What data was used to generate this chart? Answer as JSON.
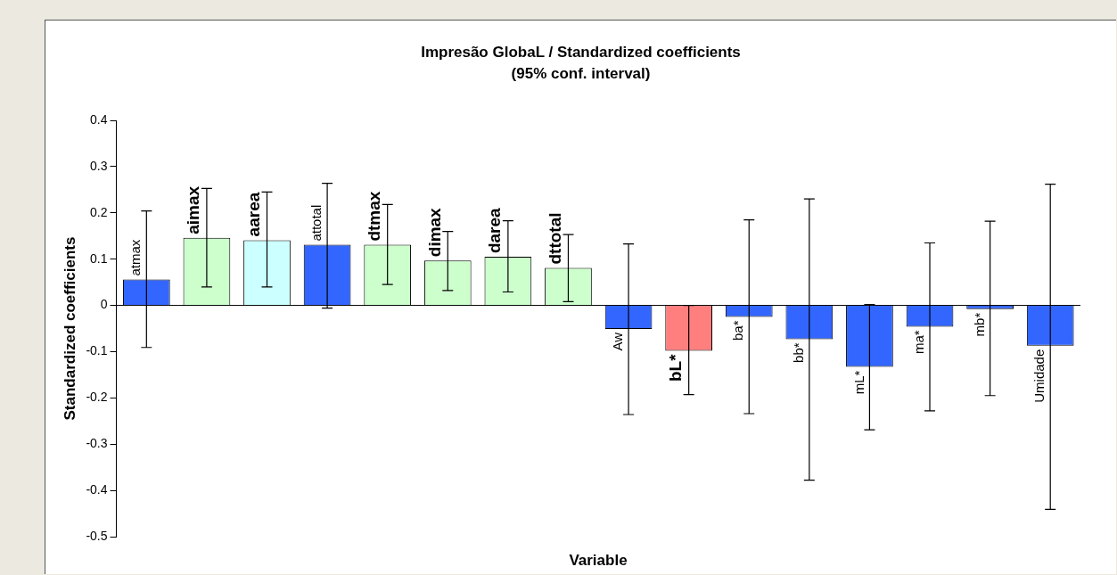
{
  "chart_data": {
    "type": "bar",
    "title": "Impresão GlobaL / Standardized coefficients",
    "subtitle": "(95% conf. interval)",
    "xlabel": "Variable",
    "ylabel": "Standardized coefficients",
    "categories": [
      "atmax",
      "aimax",
      "aarea",
      "attotal",
      "dtmax",
      "dimax",
      "darea",
      "dttotal",
      "Aw",
      "bL*",
      "ba*",
      "bb*",
      "mL*",
      "ma*",
      "mb*",
      "Umidade"
    ],
    "values": [
      0.056,
      0.146,
      0.141,
      0.131,
      0.131,
      0.097,
      0.105,
      0.081,
      -0.051,
      -0.098,
      -0.025,
      -0.073,
      -0.133,
      -0.046,
      -0.008,
      -0.087
    ],
    "errors": [
      [
        -0.091,
        0.204
      ],
      [
        0.04,
        0.253
      ],
      [
        0.04,
        0.245
      ],
      [
        -0.006,
        0.264
      ],
      [
        0.045,
        0.218
      ],
      [
        0.032,
        0.16
      ],
      [
        0.029,
        0.183
      ],
      [
        0.008,
        0.153
      ],
      [
        -0.236,
        0.133
      ],
      [
        -0.193,
        0.0
      ],
      [
        -0.234,
        0.185
      ],
      [
        -0.378,
        0.23
      ],
      [
        -0.269,
        0.002
      ],
      [
        -0.228,
        0.135
      ],
      [
        -0.195,
        0.182
      ],
      [
        -0.441,
        0.262
      ]
    ],
    "colors": [
      "#3366ff",
      "#ccffcc",
      "#ccffff",
      "#3366ff",
      "#ccffcc",
      "#ccffcc",
      "#ccffcc",
      "#ccffcc",
      "#3366ff",
      "#ff7f7f",
      "#3366ff",
      "#3366ff",
      "#3366ff",
      "#3366ff",
      "#3366ff",
      "#3366ff"
    ],
    "ylim": [
      -0.5,
      0.4
    ],
    "yticks": [
      {
        "value": -0.5,
        "label": "-0.5"
      },
      {
        "value": -0.4,
        "label": "-0.4"
      },
      {
        "value": -0.3,
        "label": "-0.3"
      },
      {
        "value": -0.2,
        "label": "-0.2"
      },
      {
        "value": -0.1,
        "label": "-0.1"
      },
      0,
      {
        "value": 0.1,
        "label": "0.1"
      },
      {
        "value": 0.2,
        "label": "0.2"
      },
      {
        "value": 0.3,
        "label": "0.3"
      },
      {
        "value": 0.4,
        "label": "0.4"
      }
    ],
    "ref_lines": [
      {
        "axis": "y",
        "value": 0,
        "color": "#000000"
      }
    ],
    "tick_labels": "y",
    "legend": false,
    "grid": false
  }
}
